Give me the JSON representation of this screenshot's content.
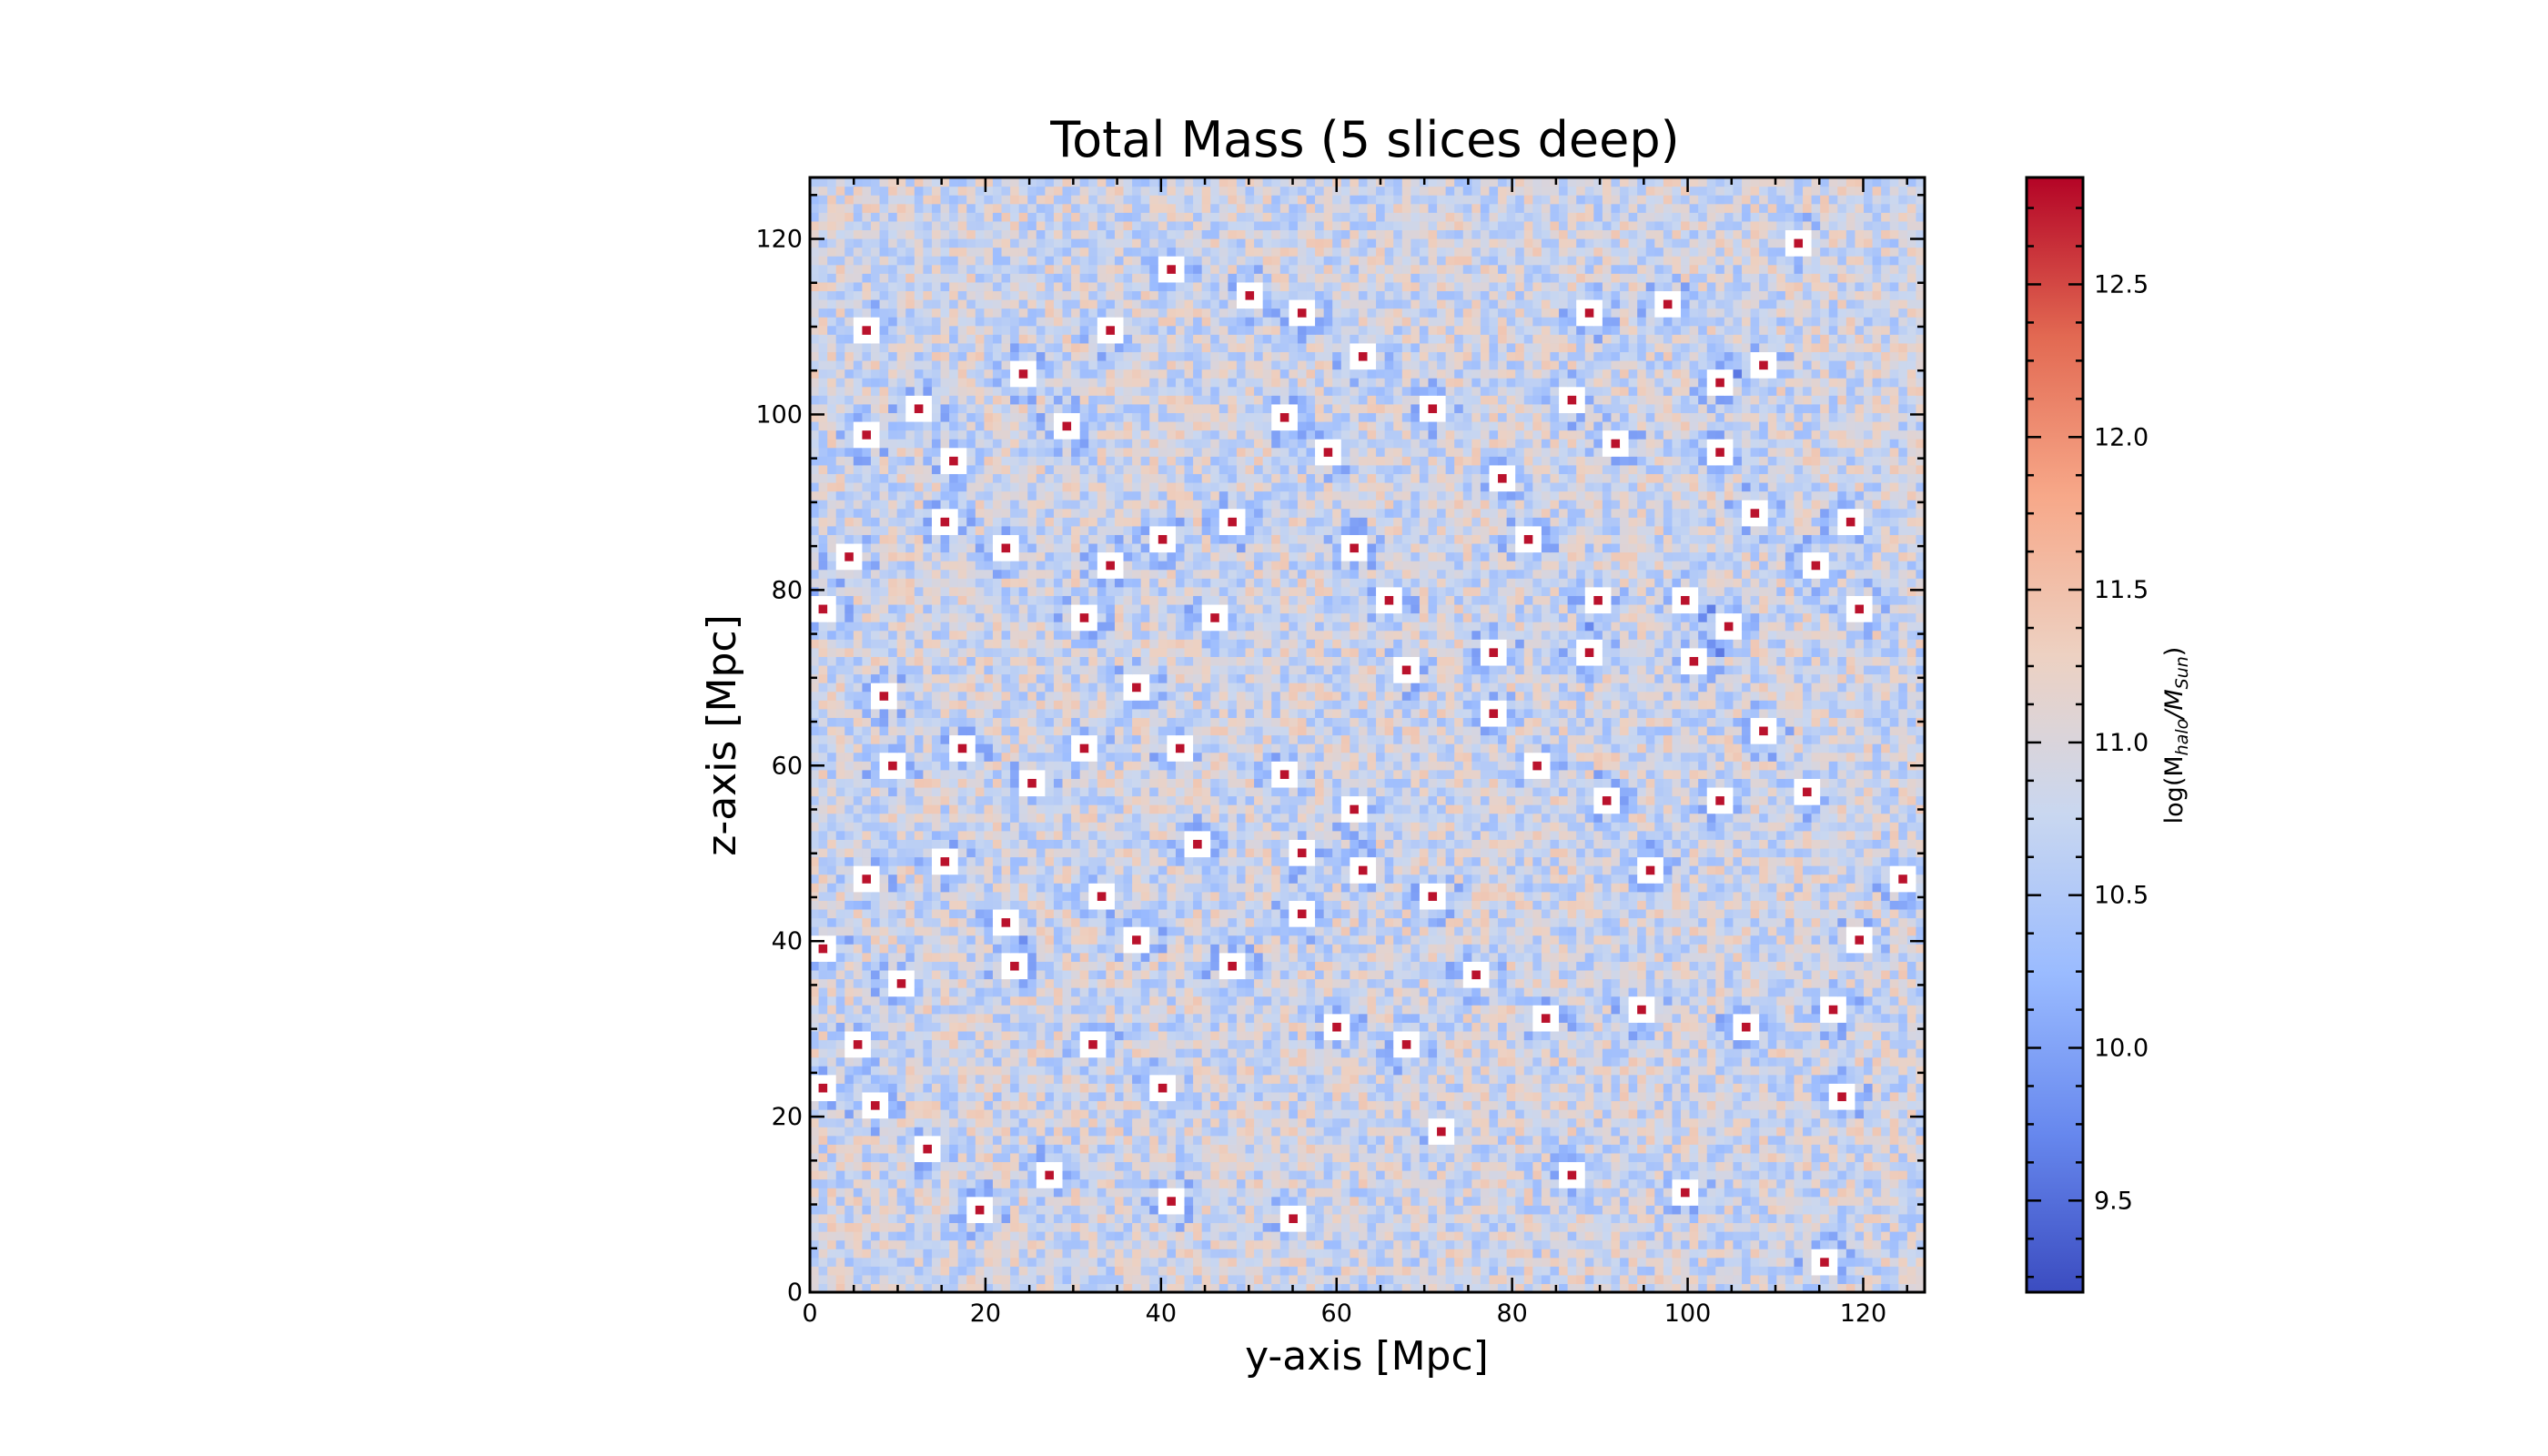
{
  "chart_data": {
    "type": "heatmap",
    "title": "Total Mass (5 slices deep)",
    "xlabel": "y-axis [Mpc]",
    "ylabel": "z-axis [Mpc]",
    "xlim": [
      0,
      127
    ],
    "ylim": [
      0,
      127
    ],
    "grid_cells": 128,
    "grid": false,
    "x_ticks": [
      0,
      20,
      40,
      60,
      80,
      100,
      120
    ],
    "y_ticks": [
      0,
      20,
      40,
      60,
      80,
      100,
      120
    ],
    "colorbar": {
      "label_prefix": "log(M",
      "label_sub1": "halo",
      "label_mid": "/M",
      "label_sub2": "Sun",
      "label_suffix": ")",
      "range": [
        9.2,
        12.85
      ],
      "ticks": [
        "9.5",
        "10.0",
        "10.5",
        "11.0",
        "11.5",
        "12.0",
        "12.5"
      ],
      "colormap": "coolwarm",
      "colormap_stops": [
        "#3b4cc0",
        "#6788ee",
        "#9abbff",
        "#c9d7f0",
        "#edd1c2",
        "#f7a889",
        "#e26952",
        "#b40426"
      ]
    },
    "empty_cell_color": "#ffffff",
    "halo_peaks": [
      [
        6,
        110
      ],
      [
        12,
        101
      ],
      [
        6,
        98
      ],
      [
        16,
        95
      ],
      [
        24,
        105
      ],
      [
        29,
        99
      ],
      [
        34,
        110
      ],
      [
        50,
        114
      ],
      [
        56,
        112
      ],
      [
        63,
        107
      ],
      [
        54,
        100
      ],
      [
        59,
        96
      ],
      [
        71,
        101
      ],
      [
        79,
        93
      ],
      [
        87,
        102
      ],
      [
        89,
        112
      ],
      [
        104,
        104
      ],
      [
        109,
        106
      ],
      [
        98,
        113
      ],
      [
        113,
        120
      ],
      [
        104,
        96
      ],
      [
        108,
        89
      ],
      [
        119,
        88
      ],
      [
        120,
        78
      ],
      [
        115,
        83
      ],
      [
        105,
        76
      ],
      [
        100,
        79
      ],
      [
        90,
        79
      ],
      [
        78,
        73
      ],
      [
        68,
        71
      ],
      [
        66,
        79
      ],
      [
        62,
        85
      ],
      [
        48,
        88
      ],
      [
        40,
        86
      ],
      [
        34,
        83
      ],
      [
        22,
        85
      ],
      [
        15,
        88
      ],
      [
        4,
        84
      ],
      [
        1,
        78
      ],
      [
        8,
        68
      ],
      [
        37,
        69
      ],
      [
        46,
        77
      ],
      [
        31,
        77
      ],
      [
        31,
        62
      ],
      [
        17,
        62
      ],
      [
        9,
        60
      ],
      [
        25,
        58
      ],
      [
        42,
        62
      ],
      [
        54,
        59
      ],
      [
        62,
        55
      ],
      [
        78,
        66
      ],
      [
        89,
        73
      ],
      [
        101,
        72
      ],
      [
        109,
        64
      ],
      [
        114,
        57
      ],
      [
        104,
        56
      ],
      [
        91,
        56
      ],
      [
        83,
        60
      ],
      [
        56,
        50
      ],
      [
        44,
        51
      ],
      [
        33,
        45
      ],
      [
        22,
        42
      ],
      [
        15,
        49
      ],
      [
        6,
        47
      ],
      [
        1,
        39
      ],
      [
        5,
        28
      ],
      [
        7,
        21
      ],
      [
        13,
        16
      ],
      [
        23,
        37
      ],
      [
        27,
        13
      ],
      [
        32,
        28
      ],
      [
        40,
        23
      ],
      [
        56,
        43
      ],
      [
        63,
        48
      ],
      [
        68,
        28
      ],
      [
        76,
        36
      ],
      [
        84,
        31
      ],
      [
        95,
        32
      ],
      [
        107,
        30
      ],
      [
        117,
        32
      ],
      [
        125,
        47
      ],
      [
        120,
        40
      ],
      [
        118,
        22
      ],
      [
        116,
        3
      ],
      [
        100,
        11
      ],
      [
        87,
        13
      ],
      [
        72,
        18
      ],
      [
        55,
        8
      ],
      [
        60,
        30
      ],
      [
        48,
        37
      ],
      [
        41,
        10
      ],
      [
        19,
        9
      ],
      [
        1,
        23
      ],
      [
        10,
        35
      ],
      [
        37,
        40
      ],
      [
        71,
        45
      ],
      [
        96,
        48
      ],
      [
        82,
        86
      ],
      [
        92,
        97
      ],
      [
        41,
        117
      ]
    ]
  }
}
